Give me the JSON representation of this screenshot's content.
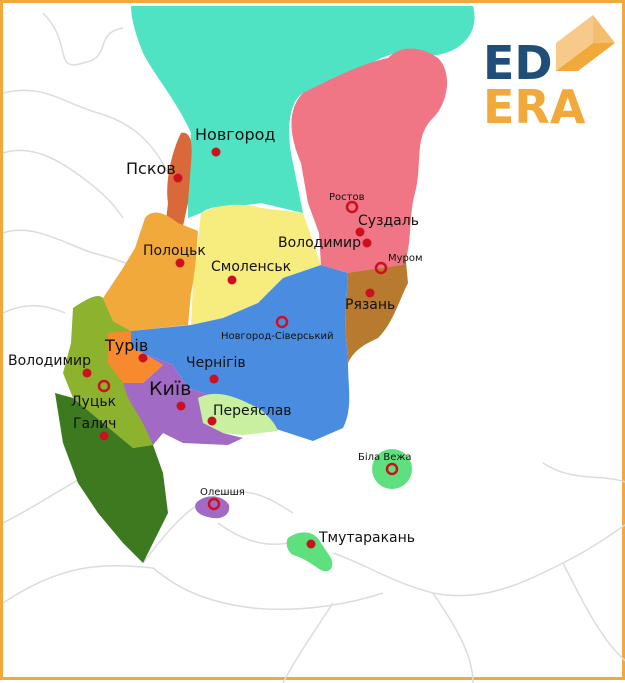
{
  "colors": {
    "frame": "#f2a93b",
    "sea_north": "#4fe3c4",
    "novgorod": "#4fe3c4",
    "rostov_suzdal": "#f07585",
    "pskov": "#d9693a",
    "polotsk": "#f2a93b",
    "smolensk": "#f7ec7e",
    "chernihiv": "#4a8de0",
    "ryazan_murom": "#b87a2e",
    "volyn": "#8db32e",
    "turov": "#f78a2e",
    "kyiv": "#a16ac4",
    "pereyaslav": "#c8f0a0",
    "halych": "#3d7a1f",
    "tmutarakan": "#5ee07e",
    "bila_vezha": "#5ee07e",
    "oleshshia": "#a16ac4",
    "coast": "#dddddd",
    "city_dot": "#cc1020",
    "logo_blue": "#1f4e79",
    "logo_orange": "#f2a93b"
  },
  "logo": {
    "line1": "ED",
    "line2": "ERA"
  },
  "cities": {
    "novgorod": "Новгород",
    "pskov": "Псков",
    "rostov": "Ростов",
    "suzdal": "Суздаль",
    "volodymyr_north": "Володимир",
    "murom": "Муром",
    "polotsk": "Полоцьк",
    "smolensk": "Смоленськ",
    "ryazan": "Рязань",
    "novhorod_siverskyi": "Новгород-Сіверський",
    "turiv": "Турів",
    "volodymyr_west": "Володимир",
    "chernihiv": "Чернігів",
    "kyiv": "Київ",
    "lutsk": "Луцьк",
    "halych": "Галич",
    "pereyaslav": "Переяслав",
    "bila_vezha": "Біла Вежа",
    "oleshshia": "Олешшя",
    "tmutarakan": "Тмутаракань"
  }
}
